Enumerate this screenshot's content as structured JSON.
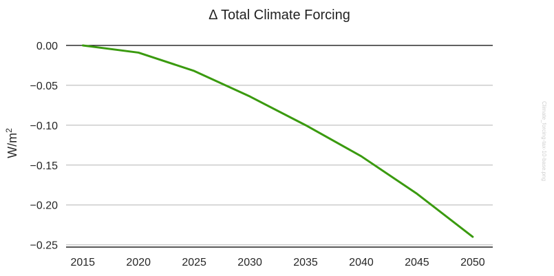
{
  "chart_data": {
    "type": "line",
    "title": "Δ Total Climate Forcing",
    "xlabel": "",
    "ylabel": "W/m²",
    "ylabel_base": "W/m",
    "ylabel_sup": "2",
    "x": [
      2015,
      2020,
      2025,
      2030,
      2035,
      2040,
      2045,
      2050
    ],
    "xlim": [
      2013.5,
      2051.8
    ],
    "ylim": [
      -0.252,
      0.0
    ],
    "yticks": [
      0.0,
      -0.05,
      -0.1,
      -0.15,
      -0.2,
      -0.25
    ],
    "ytick_labels": [
      "0.00",
      "−0.05",
      "−0.10",
      "−0.15",
      "−0.20",
      "−0.25"
    ],
    "xtick_labels": [
      "2015",
      "2020",
      "2025",
      "2030",
      "2035",
      "2040",
      "2045",
      "2050"
    ],
    "grid": true,
    "series": [
      {
        "color": "#3a9a0f",
        "values": [
          0.0,
          -0.009,
          -0.032,
          -0.064,
          -0.1,
          -0.139,
          -0.186,
          -0.24
        ]
      }
    ],
    "zero_line_color": "#000000",
    "grid_color": "#cccccc"
  },
  "watermark": "Climate_forcing-tax-10-base.png"
}
